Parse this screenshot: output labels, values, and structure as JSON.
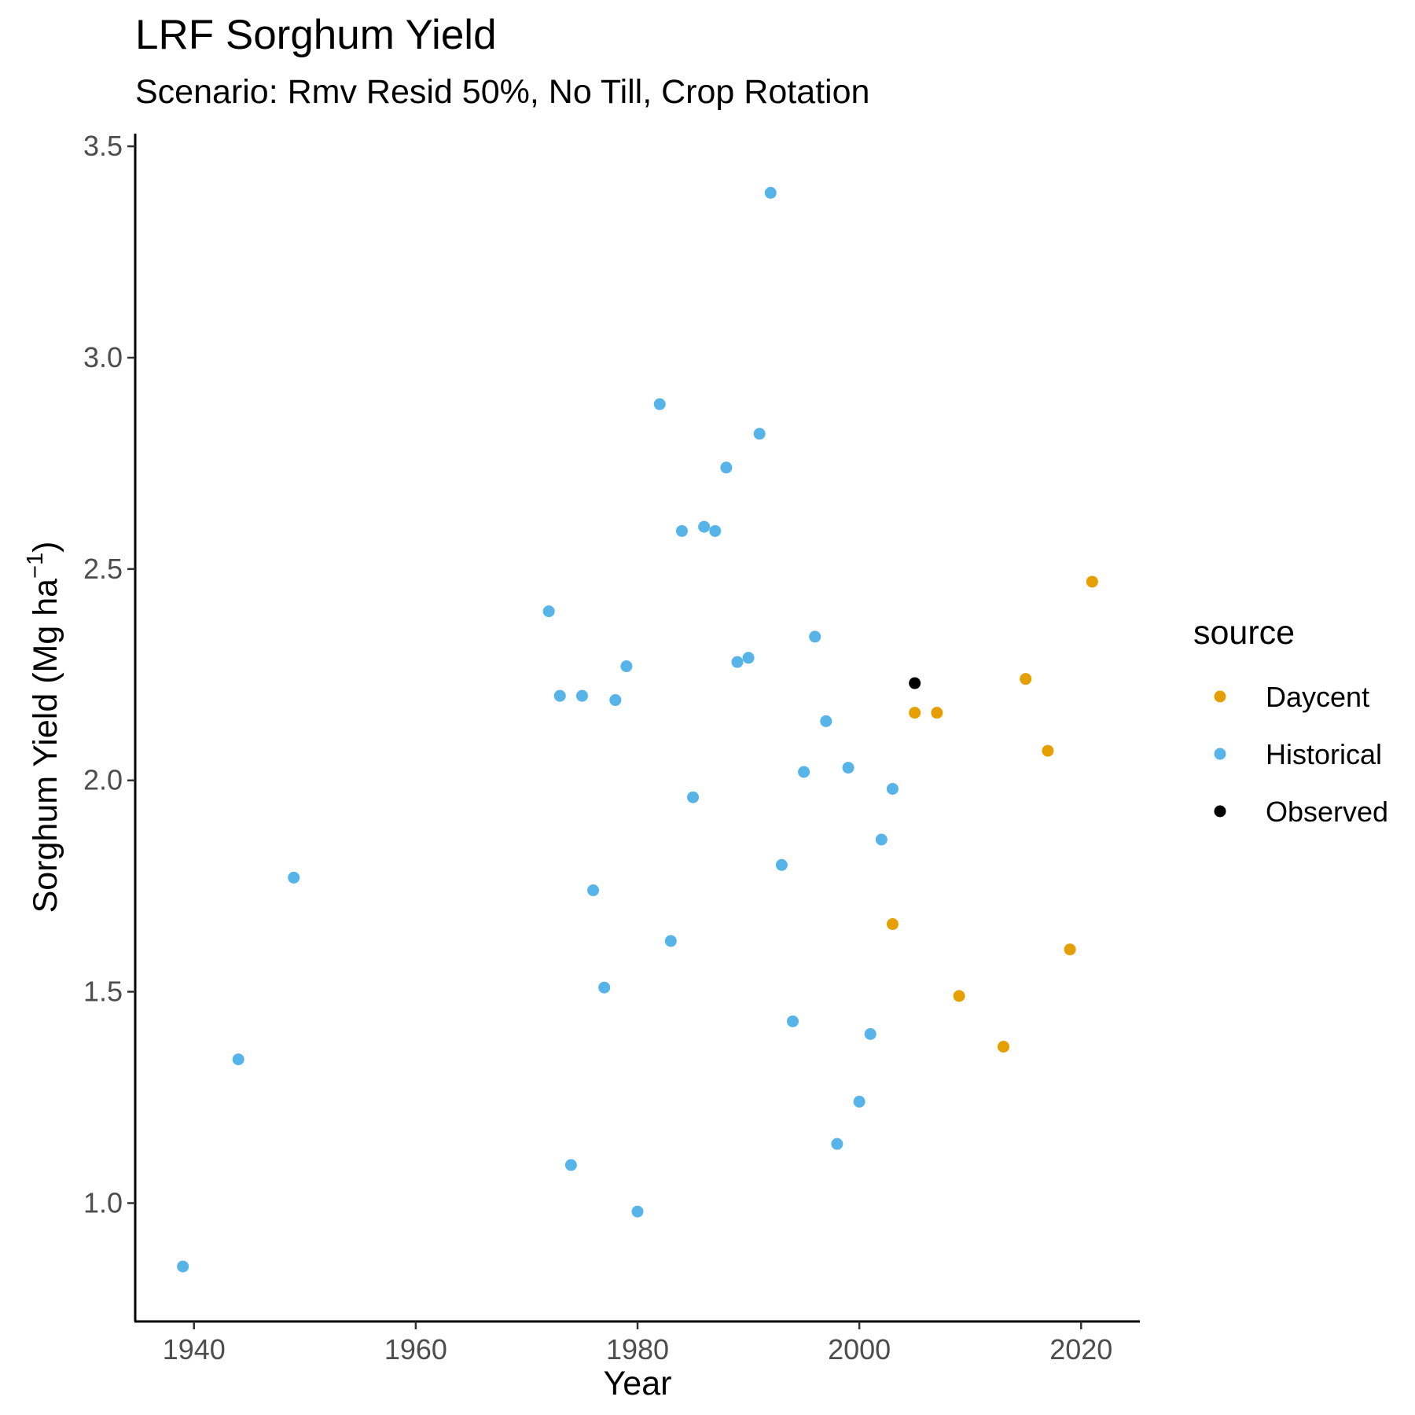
{
  "chart_data": {
    "type": "scatter",
    "title": "LRF Sorghum Yield",
    "subtitle": "Scenario: Rmv Resid 50%, No Till, Crop Rotation",
    "xlabel": "Year",
    "ylabel": "Sorghum Yield (Mg ha",
    "ylabel_superscript": "−1",
    "ylabel_suffix": ")",
    "xlim": [
      1934.7,
      2025.3
    ],
    "ylim": [
      0.72,
      3.53
    ],
    "x_ticks": [
      1940,
      1960,
      1980,
      2000,
      2020
    ],
    "y_ticks": [
      1.0,
      1.5,
      2.0,
      2.5,
      3.0,
      3.5
    ],
    "y_tick_labels": [
      "1.0",
      "1.5",
      "2.0",
      "2.5",
      "3.0",
      "3.5"
    ],
    "grid": false,
    "legend": {
      "title": "source",
      "placement": "right"
    },
    "series": [
      {
        "name": "Daycent",
        "color": "#E69F00",
        "points": [
          [
            2003,
            1.66
          ],
          [
            2005,
            2.16
          ],
          [
            2007,
            2.16
          ],
          [
            2009,
            1.49
          ],
          [
            2013,
            1.37
          ],
          [
            2015,
            2.24
          ],
          [
            2017,
            2.07
          ],
          [
            2019,
            1.6
          ],
          [
            2021,
            2.47
          ]
        ]
      },
      {
        "name": "Historical",
        "color": "#56B4E9",
        "points": [
          [
            1939,
            0.85
          ],
          [
            1944,
            1.34
          ],
          [
            1949,
            1.77
          ],
          [
            1972,
            2.4
          ],
          [
            1973,
            2.2
          ],
          [
            1974,
            1.09
          ],
          [
            1975,
            2.2
          ],
          [
            1976,
            1.74
          ],
          [
            1977,
            1.51
          ],
          [
            1978,
            2.19
          ],
          [
            1979,
            2.27
          ],
          [
            1980,
            0.98
          ],
          [
            1982,
            2.89
          ],
          [
            1983,
            1.62
          ],
          [
            1984,
            2.59
          ],
          [
            1985,
            1.96
          ],
          [
            1986,
            2.6
          ],
          [
            1987,
            2.59
          ],
          [
            1988,
            2.74
          ],
          [
            1989,
            2.28
          ],
          [
            1990,
            2.29
          ],
          [
            1991,
            2.82
          ],
          [
            1992,
            3.39
          ],
          [
            1993,
            1.8
          ],
          [
            1994,
            1.43
          ],
          [
            1995,
            2.02
          ],
          [
            1996,
            2.34
          ],
          [
            1997,
            2.14
          ],
          [
            1998,
            1.14
          ],
          [
            1999,
            2.03
          ],
          [
            2000,
            1.24
          ],
          [
            2001,
            1.4
          ],
          [
            2002,
            1.86
          ],
          [
            2003,
            1.98
          ]
        ]
      },
      {
        "name": "Observed",
        "color": "#000000",
        "points": [
          [
            2005,
            2.23
          ]
        ]
      }
    ]
  }
}
